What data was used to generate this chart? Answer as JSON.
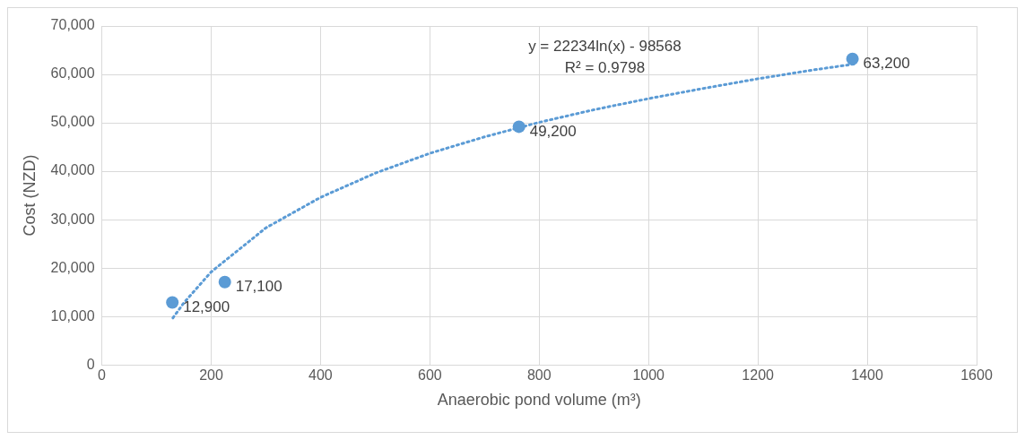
{
  "chart_data": {
    "type": "scatter",
    "xlabel": "Anaerobic pond volume (m³)",
    "ylabel": "Cost (NZD)",
    "xlim": [
      0,
      1600
    ],
    "xticks": [
      0,
      200,
      400,
      600,
      800,
      1000,
      1200,
      1400,
      1600
    ],
    "ylim": [
      0,
      70000
    ],
    "yticks": [
      {
        "value": 0,
        "label": "0"
      },
      {
        "value": 10000,
        "label": "10,000"
      },
      {
        "value": 20000,
        "label": "20,000"
      },
      {
        "value": 30000,
        "label": "30,000"
      },
      {
        "value": 40000,
        "label": "40,000"
      },
      {
        "value": 50000,
        "label": "50,000"
      },
      {
        "value": 60000,
        "label": "60,000"
      },
      {
        "value": 70000,
        "label": "70,000"
      }
    ],
    "grid": true,
    "legend": false,
    "annotations": [
      "y = 22234ln(x) - 98568",
      "R² = 0.9798"
    ],
    "series": [
      {
        "color": "#5b9bd5",
        "marker": "circle",
        "x": [
          129,
          225,
          763,
          1373
        ],
        "values": [
          12900,
          17100,
          49200,
          63200
        ],
        "value_labels": [
          "12,900",
          "17,100",
          "49,200",
          "63,200"
        ]
      },
      {
        "type": "line",
        "color": "#5b9bd5",
        "marker": "none",
        "line_style": "dotted",
        "x": [
          130,
          150,
          200,
          300,
          400,
          500,
          600,
          700,
          800,
          900,
          1000,
          1100,
          1200,
          1300,
          1380
        ],
        "values": [
          9700,
          12800,
          19200,
          28300,
          34600,
          39600,
          43700,
          47100,
          50100,
          52700,
          55000,
          57100,
          59100,
          60900,
          62200
        ]
      }
    ]
  }
}
